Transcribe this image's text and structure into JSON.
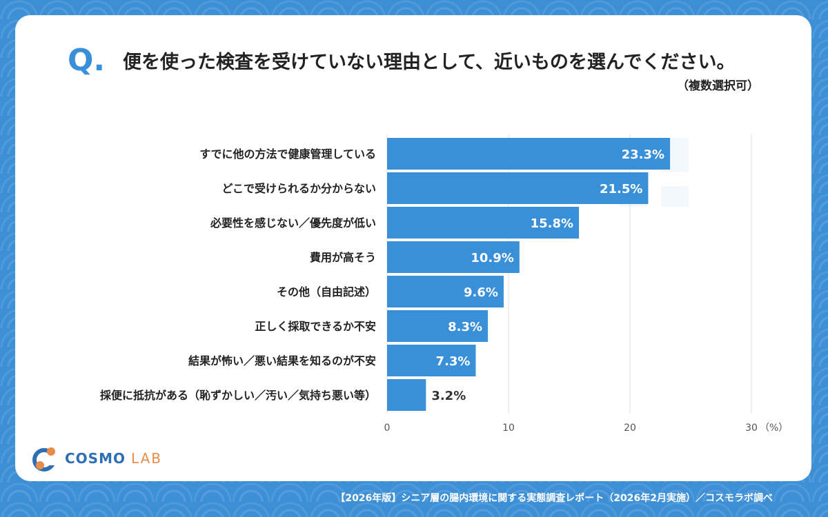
{
  "question": {
    "mark": "Q",
    "title": "便を使った検査を受けていない理由として、近いものを選んでください。",
    "note": "（複数選択可）"
  },
  "chart_data": {
    "type": "bar",
    "orientation": "horizontal",
    "categories": [
      "すでに他の方法で健康管理している",
      "どこで受けられるか分からない",
      "必要性を感じない／優先度が低い",
      "費用が高そう",
      "その他（自由記述）",
      "正しく採取できるか不安",
      "結果が怖い／悪い結果を知るのが不安",
      "採便に抵抗がある（恥ずかしい／汚い／気持ち悪い等）"
    ],
    "values": [
      23.3,
      21.5,
      15.8,
      10.9,
      9.6,
      8.3,
      7.3,
      3.2
    ],
    "value_labels": [
      "23.3%",
      "21.5%",
      "15.8%",
      "10.9%",
      "9.6%",
      "8.3%",
      "7.3%",
      "3.2%"
    ],
    "xlim": [
      0,
      30
    ],
    "xticks": [
      "0",
      "10",
      "20",
      "30"
    ],
    "unit": "（%）",
    "grid": true,
    "bar_color": "#3a8fd9"
  },
  "logo": {
    "brand": "COSMO",
    "suffix": "LAB"
  },
  "footer": "【2026年版】シニア層の腸内環境に関する実態調査レポート（2026年2月実施）／コスモラボ調べ"
}
